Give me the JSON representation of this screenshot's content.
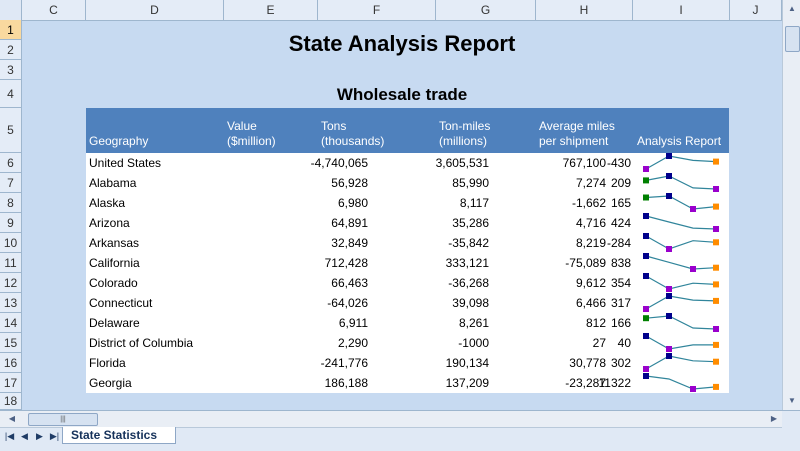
{
  "columns": [
    "C",
    "D",
    "E",
    "F",
    "G",
    "H",
    "I",
    "J"
  ],
  "rows": [
    "1",
    "2",
    "3",
    "4",
    "5",
    "6",
    "7",
    "8",
    "9",
    "10",
    "11",
    "12",
    "13",
    "14",
    "15",
    "16",
    "17",
    "18"
  ],
  "selected_row": "1",
  "report_title": "State Analysis Report",
  "subtitle": "Wholesale trade",
  "headers": {
    "geography": "Geography",
    "value": [
      "Value",
      "($million)"
    ],
    "tons": [
      "Tons",
      "(thousands)"
    ],
    "tonmiles": [
      "Ton-miles",
      "(millions)"
    ],
    "avgmiles": [
      "Average miles",
      "per shipment"
    ],
    "analysis": "Analysis Report"
  },
  "data": [
    {
      "geo": "United States",
      "value": "-4,740,065",
      "tons": "3,605,531",
      "tonmiles": "767,100",
      "avg": "-430"
    },
    {
      "geo": "Alabama",
      "value": "56,928",
      "tons": "85,990",
      "tonmiles": "7,274",
      "avg": "209"
    },
    {
      "geo": "Alaska",
      "value": "6,980",
      "tons": "8,117",
      "tonmiles": "-1,662",
      "avg": "165"
    },
    {
      "geo": "Arizona",
      "value": "64,891",
      "tons": "35,286",
      "tonmiles": "4,716",
      "avg": "424"
    },
    {
      "geo": "Arkansas",
      "value": "32,849",
      "tons": "-35,842",
      "tonmiles": "8,219",
      "avg": "-284"
    },
    {
      "geo": "California",
      "value": "712,428",
      "tons": "333,121",
      "tonmiles": "-75,089",
      "avg": "838"
    },
    {
      "geo": "Colorado",
      "value": "66,463",
      "tons": "-36,268",
      "tonmiles": "9,612",
      "avg": "354"
    },
    {
      "geo": "Connecticut",
      "value": "-64,026",
      "tons": "39,098",
      "tonmiles": "6,466",
      "avg": "317"
    },
    {
      "geo": "Delaware",
      "value": "6,911",
      "tons": "8,261",
      "tonmiles": "812",
      "avg": "166"
    },
    {
      "geo": "District of Columbia",
      "value": "2,290",
      "tons": "-1000",
      "tonmiles": "27",
      "avg": "40"
    },
    {
      "geo": "Florida",
      "value": "-241,776",
      "tons": "190,134",
      "tonmiles": "30,778",
      "avg": "302"
    },
    {
      "geo": "Georgia",
      "value": "186,188",
      "tons": "137,209",
      "tonmiles": "-23,287",
      "avg": "11322"
    }
  ],
  "sparkline_colors": {
    "line": "#31859b",
    "high": "#00008b",
    "low": "#9900cc",
    "first": "#008000",
    "last": "#ff8c00"
  },
  "sheet_tabs": [
    "State Statistics"
  ],
  "icons": {
    "scroll_up": "triangle-up-icon",
    "scroll_down": "triangle-down-icon",
    "scroll_left": "triangle-left-icon",
    "scroll_right": "triangle-right-icon"
  }
}
